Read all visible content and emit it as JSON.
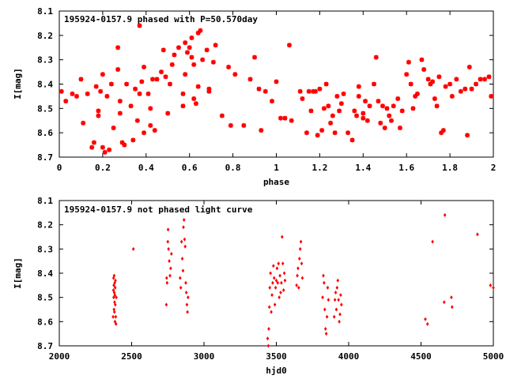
{
  "chart_data": [
    {
      "type": "scatter",
      "title": "195924-0157.9 phased with P=50.570day",
      "xlabel": "phase",
      "ylabel": "I[mag]",
      "xlim": [
        0,
        2
      ],
      "ylim": [
        8.1,
        8.7
      ],
      "y_inverted": true,
      "grid": false,
      "marker": "star",
      "color": "#ff0000",
      "x_ticks": [
        "0",
        "0.2",
        "0.4",
        "0.6",
        "0.8",
        "1",
        "1.2",
        "1.4",
        "1.6",
        "1.8",
        "2"
      ],
      "y_ticks": [
        "8.1",
        "8.2",
        "8.3",
        "8.4",
        "8.5",
        "8.6",
        "8.7"
      ],
      "points": [
        [
          0.01,
          8.43
        ],
        [
          0.03,
          8.47
        ],
        [
          0.06,
          8.44
        ],
        [
          0.08,
          8.45
        ],
        [
          0.1,
          8.38
        ],
        [
          0.11,
          8.56
        ],
        [
          0.13,
          8.44
        ],
        [
          0.15,
          8.66
        ],
        [
          0.16,
          8.64
        ],
        [
          0.17,
          8.41
        ],
        [
          0.18,
          8.53
        ],
        [
          0.18,
          8.51
        ],
        [
          0.19,
          8.43
        ],
        [
          0.2,
          8.36
        ],
        [
          0.2,
          8.66
        ],
        [
          0.21,
          8.68
        ],
        [
          0.22,
          8.45
        ],
        [
          0.23,
          8.67
        ],
        [
          0.24,
          8.4
        ],
        [
          0.25,
          8.58
        ],
        [
          0.27,
          8.34
        ],
        [
          0.27,
          8.25
        ],
        [
          0.28,
          8.47
        ],
        [
          0.28,
          8.52
        ],
        [
          0.29,
          8.64
        ],
        [
          0.3,
          8.65
        ],
        [
          0.31,
          8.4
        ],
        [
          0.33,
          8.49
        ],
        [
          0.34,
          8.63
        ],
        [
          0.35,
          8.42
        ],
        [
          0.36,
          8.55
        ],
        [
          0.37,
          8.16
        ],
        [
          0.37,
          8.44
        ],
        [
          0.38,
          8.39
        ],
        [
          0.39,
          8.6
        ],
        [
          0.39,
          8.33
        ],
        [
          0.41,
          8.44
        ],
        [
          0.42,
          8.5
        ],
        [
          0.42,
          8.57
        ],
        [
          0.43,
          8.38
        ],
        [
          0.44,
          8.59
        ],
        [
          0.45,
          8.38
        ],
        [
          0.47,
          8.35
        ],
        [
          0.48,
          8.26
        ],
        [
          0.49,
          8.37
        ],
        [
          0.5,
          8.52
        ],
        [
          0.51,
          8.4
        ],
        [
          0.52,
          8.32
        ],
        [
          0.53,
          8.28
        ],
        [
          0.55,
          8.25
        ],
        [
          0.57,
          8.49
        ],
        [
          0.57,
          8.44
        ],
        [
          0.58,
          8.36
        ],
        [
          0.58,
          8.23
        ],
        [
          0.59,
          8.27
        ],
        [
          0.6,
          8.25
        ],
        [
          0.61,
          8.21
        ],
        [
          0.61,
          8.29
        ],
        [
          0.62,
          8.46
        ],
        [
          0.62,
          8.32
        ],
        [
          0.63,
          8.48
        ],
        [
          0.64,
          8.19
        ],
        [
          0.64,
          8.41
        ],
        [
          0.65,
          8.18
        ],
        [
          0.66,
          8.3
        ],
        [
          0.68,
          8.26
        ],
        [
          0.69,
          8.42
        ],
        [
          0.69,
          8.43
        ],
        [
          0.71,
          8.31
        ],
        [
          0.72,
          8.24
        ],
        [
          0.75,
          8.53
        ],
        [
          0.78,
          8.33
        ],
        [
          0.79,
          8.57
        ],
        [
          0.81,
          8.36
        ],
        [
          0.85,
          8.57
        ],
        [
          0.88,
          8.38
        ],
        [
          0.9,
          8.29
        ],
        [
          0.92,
          8.42
        ],
        [
          0.93,
          8.59
        ],
        [
          0.95,
          8.43
        ],
        [
          0.98,
          8.47
        ],
        [
          1.0,
          8.39
        ],
        [
          1.02,
          8.54
        ],
        [
          1.04,
          8.54
        ],
        [
          1.06,
          8.24
        ],
        [
          1.07,
          8.55
        ],
        [
          1.11,
          8.43
        ],
        [
          1.12,
          8.46
        ],
        [
          1.14,
          8.6
        ],
        [
          1.15,
          8.43
        ],
        [
          1.16,
          8.51
        ],
        [
          1.17,
          8.43
        ],
        [
          1.18,
          8.43
        ],
        [
          1.19,
          8.61
        ],
        [
          1.2,
          8.42
        ],
        [
          1.21,
          8.59
        ],
        [
          1.22,
          8.5
        ],
        [
          1.23,
          8.4
        ],
        [
          1.24,
          8.49
        ],
        [
          1.25,
          8.56
        ],
        [
          1.26,
          8.53
        ],
        [
          1.27,
          8.6
        ],
        [
          1.28,
          8.45
        ],
        [
          1.29,
          8.51
        ],
        [
          1.3,
          8.48
        ],
        [
          1.31,
          8.44
        ],
        [
          1.33,
          8.6
        ],
        [
          1.35,
          8.63
        ],
        [
          1.36,
          8.51
        ],
        [
          1.37,
          8.53
        ],
        [
          1.38,
          8.45
        ],
        [
          1.38,
          8.41
        ],
        [
          1.4,
          8.52
        ],
        [
          1.4,
          8.54
        ],
        [
          1.41,
          8.47
        ],
        [
          1.42,
          8.55
        ],
        [
          1.43,
          8.49
        ],
        [
          1.45,
          8.4
        ],
        [
          1.46,
          8.29
        ],
        [
          1.47,
          8.47
        ],
        [
          1.48,
          8.56
        ],
        [
          1.49,
          8.49
        ],
        [
          1.5,
          8.58
        ],
        [
          1.51,
          8.5
        ],
        [
          1.52,
          8.53
        ],
        [
          1.53,
          8.55
        ],
        [
          1.54,
          8.49
        ],
        [
          1.56,
          8.46
        ],
        [
          1.57,
          8.58
        ],
        [
          1.58,
          8.51
        ],
        [
          1.6,
          8.36
        ],
        [
          1.61,
          8.31
        ],
        [
          1.62,
          8.4
        ],
        [
          1.63,
          8.5
        ],
        [
          1.64,
          8.45
        ],
        [
          1.65,
          8.44
        ],
        [
          1.67,
          8.3
        ],
        [
          1.68,
          8.34
        ],
        [
          1.7,
          8.38
        ],
        [
          1.71,
          8.4
        ],
        [
          1.72,
          8.39
        ],
        [
          1.73,
          8.46
        ],
        [
          1.74,
          8.49
        ],
        [
          1.75,
          8.37
        ],
        [
          1.76,
          8.6
        ],
        [
          1.77,
          8.59
        ],
        [
          1.78,
          8.41
        ],
        [
          1.8,
          8.4
        ],
        [
          1.81,
          8.45
        ],
        [
          1.83,
          8.38
        ],
        [
          1.85,
          8.43
        ],
        [
          1.87,
          8.42
        ],
        [
          1.88,
          8.61
        ],
        [
          1.89,
          8.33
        ],
        [
          1.9,
          8.42
        ],
        [
          1.92,
          8.4
        ],
        [
          1.94,
          8.38
        ],
        [
          1.96,
          8.38
        ],
        [
          1.98,
          8.37
        ],
        [
          1.99,
          8.45
        ]
      ]
    },
    {
      "type": "scatter",
      "title": "195924-0157.9 not phased light curve",
      "xlabel": "hjd0",
      "ylabel": "I[mag]",
      "xlim": [
        2000,
        5000
      ],
      "ylim": [
        8.1,
        8.7
      ],
      "y_inverted": true,
      "grid": false,
      "marker": "diamond",
      "color": "#ff0000",
      "x_ticks": [
        "2000",
        "2500",
        "3000",
        "3500",
        "4000",
        "4500",
        "5000"
      ],
      "y_ticks": [
        "8.1",
        "8.2",
        "8.3",
        "8.4",
        "8.5",
        "8.6",
        "8.7"
      ],
      "points": [
        [
          2372,
          8.58
        ],
        [
          2374,
          8.47
        ],
        [
          2375,
          8.42
        ],
        [
          2376,
          8.5
        ],
        [
          2377,
          8.45
        ],
        [
          2378,
          8.55
        ],
        [
          2379,
          8.41
        ],
        [
          2380,
          8.48
        ],
        [
          2381,
          8.56
        ],
        [
          2382,
          8.52
        ],
        [
          2383,
          8.44
        ],
        [
          2384,
          8.49
        ],
        [
          2385,
          8.6
        ],
        [
          2386,
          8.46
        ],
        [
          2387,
          8.53
        ],
        [
          2388,
          8.43
        ],
        [
          2390,
          8.58
        ],
        [
          2392,
          8.61
        ],
        [
          2394,
          8.5
        ],
        [
          2512,
          8.3
        ],
        [
          2740,
          8.53
        ],
        [
          2742,
          8.42
        ],
        [
          2745,
          8.44
        ],
        [
          2750,
          8.27
        ],
        [
          2752,
          8.22
        ],
        [
          2755,
          8.3
        ],
        [
          2760,
          8.35
        ],
        [
          2765,
          8.41
        ],
        [
          2770,
          8.38
        ],
        [
          2775,
          8.32
        ],
        [
          2835,
          8.42
        ],
        [
          2840,
          8.46
        ],
        [
          2845,
          8.27
        ],
        [
          2850,
          8.34
        ],
        [
          2855,
          8.39
        ],
        [
          2858,
          8.21
        ],
        [
          2862,
          8.18
        ],
        [
          2866,
          8.26
        ],
        [
          2870,
          8.29
        ],
        [
          2874,
          8.44
        ],
        [
          2878,
          8.48
        ],
        [
          2882,
          8.53
        ],
        [
          2886,
          8.56
        ],
        [
          2890,
          8.5
        ],
        [
          3440,
          8.67
        ],
        [
          3445,
          8.71
        ],
        [
          3448,
          8.63
        ],
        [
          3452,
          8.54
        ],
        [
          3455,
          8.46
        ],
        [
          3460,
          8.4
        ],
        [
          3465,
          8.56
        ],
        [
          3470,
          8.49
        ],
        [
          3475,
          8.44
        ],
        [
          3480,
          8.37
        ],
        [
          3485,
          8.42
        ],
        [
          3490,
          8.53
        ],
        [
          3495,
          8.46
        ],
        [
          3500,
          8.43
        ],
        [
          3505,
          8.38
        ],
        [
          3510,
          8.44
        ],
        [
          3515,
          8.36
        ],
        [
          3520,
          8.5
        ],
        [
          3525,
          8.41
        ],
        [
          3530,
          8.48
        ],
        [
          3535,
          8.44
        ],
        [
          3540,
          8.25
        ],
        [
          3545,
          8.36
        ],
        [
          3550,
          8.47
        ],
        [
          3555,
          8.4
        ],
        [
          3560,
          8.43
        ],
        [
          3640,
          8.45
        ],
        [
          3645,
          8.41
        ],
        [
          3650,
          8.38
        ],
        [
          3655,
          8.46
        ],
        [
          3660,
          8.34
        ],
        [
          3665,
          8.3
        ],
        [
          3670,
          8.27
        ],
        [
          3675,
          8.36
        ],
        [
          3680,
          8.42
        ],
        [
          3820,
          8.5
        ],
        [
          3825,
          8.41
        ],
        [
          3830,
          8.44
        ],
        [
          3835,
          8.55
        ],
        [
          3840,
          8.63
        ],
        [
          3845,
          8.65
        ],
        [
          3850,
          8.58
        ],
        [
          3855,
          8.46
        ],
        [
          3860,
          8.51
        ],
        [
          3900,
          8.58
        ],
        [
          3905,
          8.51
        ],
        [
          3910,
          8.48
        ],
        [
          3915,
          8.55
        ],
        [
          3920,
          8.46
        ],
        [
          3925,
          8.43
        ],
        [
          3930,
          8.51
        ],
        [
          3935,
          8.6
        ],
        [
          3940,
          8.57
        ],
        [
          3945,
          8.49
        ],
        [
          3950,
          8.53
        ],
        [
          4530,
          8.59
        ],
        [
          4545,
          8.61
        ],
        [
          4580,
          8.27
        ],
        [
          4660,
          8.52
        ],
        [
          4665,
          8.16
        ],
        [
          4710,
          8.5
        ],
        [
          4715,
          8.54
        ],
        [
          4890,
          8.24
        ],
        [
          4980,
          8.45
        ],
        [
          5000,
          8.46
        ]
      ]
    }
  ]
}
